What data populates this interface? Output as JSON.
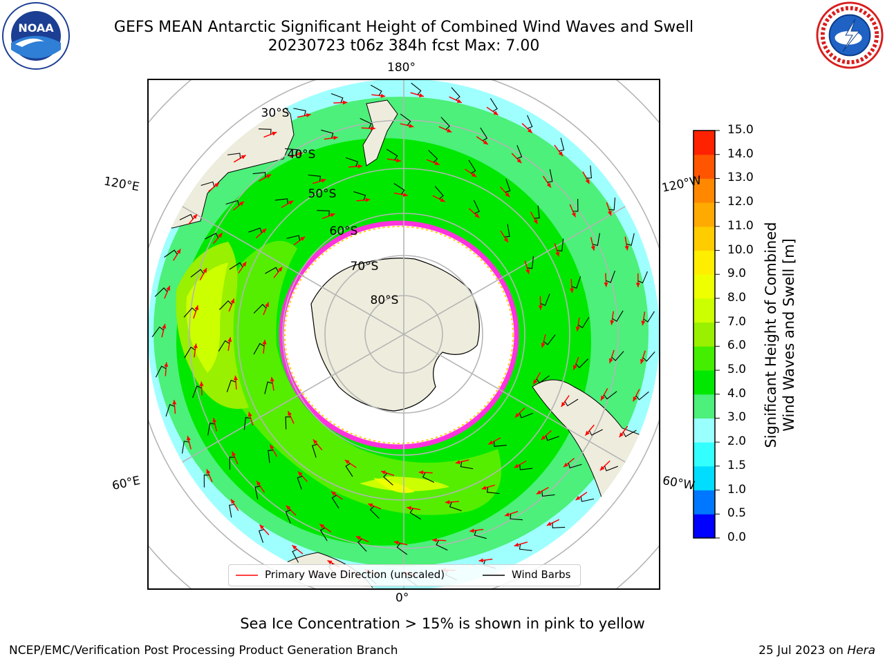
{
  "title": {
    "line1": "GEFS MEAN Antarctic Significant Height of Combined Wind Waves and Swell",
    "line2": "20230723 t06z 384h fcst   Max: 7.00"
  },
  "logos": {
    "left": "NOAA",
    "left_ring_text": "NATIONAL OCEANIC AND ATMOSPHERIC ADMINISTRATION · U.S. DEPARTMENT OF COMMERCE",
    "right_ring_text": "NATIONAL WEATHER SERVICE"
  },
  "map": {
    "projection": "south-polar-stereographic",
    "center": "South Pole",
    "lon_labels": {
      "top": "180°",
      "bottom": "0°",
      "left_upper": "120°E",
      "left_lower": "60°E",
      "right_upper": "120°W",
      "right_lower": "60°W"
    },
    "lat_labels": [
      "30°S",
      "40°S",
      "50°S",
      "60°S",
      "70°S",
      "80°S"
    ],
    "colors": {
      "land": "#eeecdc",
      "ice_free_sea_ice_zone": "#ffffff",
      "sea_ice_edge": "#ff33dd",
      "grid": "#b5b5b5"
    }
  },
  "colorbar": {
    "label_line1": "Significant Height of Combined",
    "label_line2": "Wind Waves and Swell [m]",
    "ticks": [
      "0.0",
      "0.5",
      "1.0",
      "1.5",
      "2.0",
      "3.0",
      "4.0",
      "5.0",
      "6.0",
      "7.0",
      "8.0",
      "9.0",
      "10.0",
      "11.0",
      "12.0",
      "13.0",
      "14.0",
      "15.0"
    ],
    "colors": [
      "#0000ff",
      "#0077ff",
      "#00ddff",
      "#33ffff",
      "#99ffff",
      "#4cf07a",
      "#00e800",
      "#44ee00",
      "#99f000",
      "#ccff00",
      "#eeff00",
      "#ffee00",
      "#ffcc00",
      "#ffaa00",
      "#ff8800",
      "#ff5500",
      "#ff2200"
    ]
  },
  "legend": {
    "wave_direction": "Primary Wave Direction (unscaled)",
    "wind_barbs": "Wind Barbs",
    "wave_color": "#ff0000",
    "barb_color": "#000000"
  },
  "footer_note": "Sea Ice Concentration > 15% is shown in pink to yellow",
  "credit": "NCEP/EMC/Verification Post Processing Product Generation Branch",
  "date_prefix": "25 Jul 2023 on ",
  "date_system": "Hera"
}
